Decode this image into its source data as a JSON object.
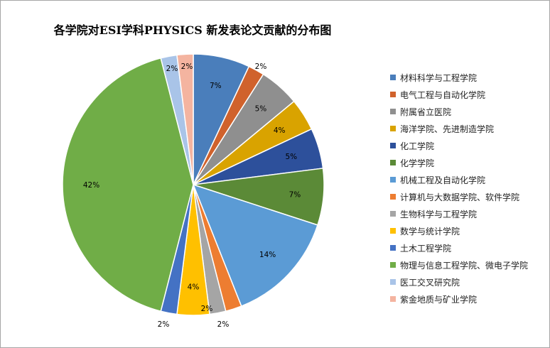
{
  "chart_data": {
    "type": "pie",
    "title": "各学院对ESI学科PHYSICS 新发表论文贡献的分布图",
    "legend_position": "right",
    "slices": [
      {
        "name": "材料科学与工程学院",
        "value": 7,
        "label": "7%",
        "color": "#4a7ebb"
      },
      {
        "name": "电气工程与自动化学院",
        "value": 2,
        "label": "2%",
        "color": "#d0622c"
      },
      {
        "name": "附属省立医院",
        "value": 5,
        "label": "5%",
        "color": "#8f8f8f"
      },
      {
        "name": "海洋学院、先进制造学院",
        "value": 4,
        "label": "4%",
        "color": "#d9a300"
      },
      {
        "name": "化工学院",
        "value": 5,
        "label": "5%",
        "color": "#2d509b"
      },
      {
        "name": "化学学院",
        "value": 7,
        "label": "7%",
        "color": "#5b8a37"
      },
      {
        "name": "机械工程及自动化学院",
        "value": 14,
        "label": "14%",
        "color": "#5b9bd5"
      },
      {
        "name": "计算机与大数据学院、软件学院",
        "value": 2,
        "label": "2%",
        "color": "#ed7d31"
      },
      {
        "name": "生物科学与工程学院",
        "value": 2,
        "label": "2%",
        "color": "#a5a5a5"
      },
      {
        "name": "数学与统计学院",
        "value": 4,
        "label": "4%",
        "color": "#ffc000"
      },
      {
        "name": "土木工程学院",
        "value": 2,
        "label": "2%",
        "color": "#4472c4"
      },
      {
        "name": "物理与信息工程学院、微电子学院",
        "value": 42,
        "label": "42%",
        "color": "#70ad47"
      },
      {
        "name": "医工交叉研究院",
        "value": 2,
        "label": "2%",
        "color": "#a9c4e8"
      },
      {
        "name": "紫金地质与矿业学院",
        "value": 2,
        "label": "2%",
        "color": "#f4b4a0"
      }
    ]
  }
}
